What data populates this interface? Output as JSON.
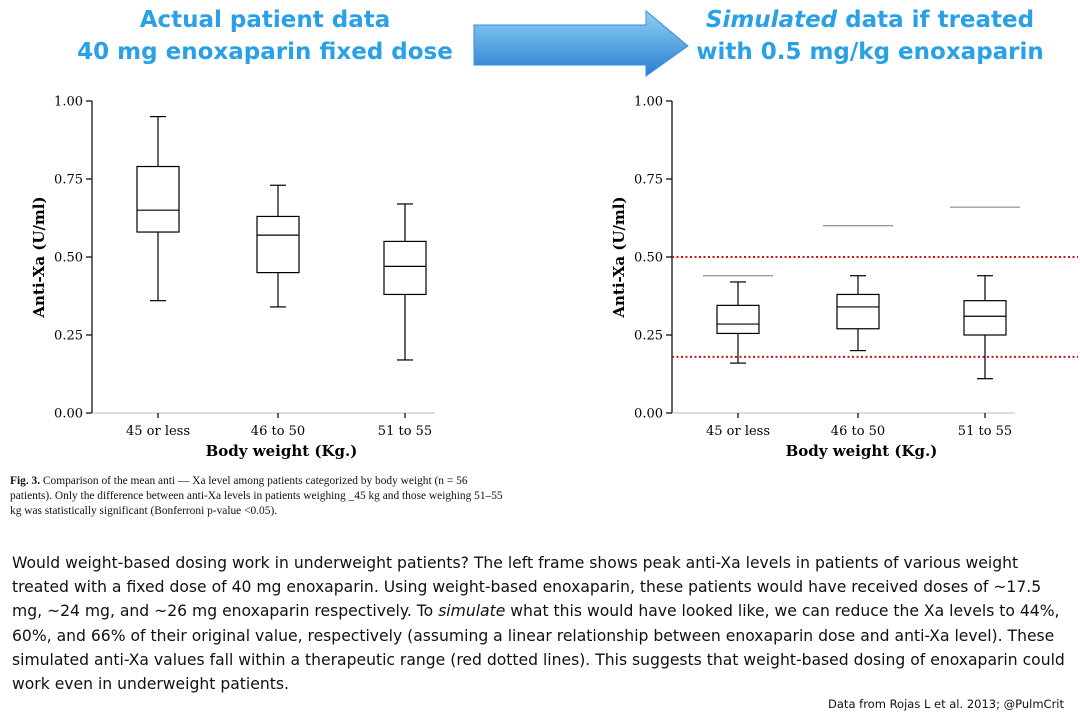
{
  "header": {
    "left_title_line1": "Actual patient data",
    "left_title_line2": "40 mg enoxaparin fixed dose",
    "right_title_italic": "Simulated",
    "right_title_line1_rest": " data if treated",
    "right_title_line2": "with 0.5 mg/kg enoxaparin"
  },
  "colors": {
    "title": "#2aa0e6",
    "arrow": "#3a8fd9",
    "therapeutic_lines": "#cc1111"
  },
  "chart_data": [
    {
      "type": "box",
      "xlabel": "Body weight (Kg.)",
      "ylabel": "Anti-Xa (U/ml)",
      "ylim": [
        0,
        1
      ],
      "yticks": [
        "0.00",
        "0.25",
        "0.50",
        "0.75",
        "1.00"
      ],
      "categories": [
        "45 or less",
        "46 to 50",
        "51 to 55"
      ],
      "boxes": [
        {
          "min": 0.36,
          "q1": 0.58,
          "median": 0.65,
          "q3": 0.79,
          "max": 0.95
        },
        {
          "min": 0.34,
          "q1": 0.45,
          "median": 0.57,
          "q3": 0.63,
          "max": 0.73
        },
        {
          "min": 0.17,
          "q1": 0.38,
          "median": 0.47,
          "q3": 0.55,
          "max": 0.67
        }
      ]
    },
    {
      "type": "box",
      "xlabel": "Body weight (Kg.)",
      "ylabel": "Anti-Xa (U/ml)",
      "ylim": [
        0,
        1
      ],
      "yticks": [
        "0.00",
        "0.25",
        "0.50",
        "0.75",
        "1.00"
      ],
      "categories": [
        "45 or less",
        "46 to 50",
        "51 to 55"
      ],
      "boxes": [
        {
          "min": 0.16,
          "q1": 0.255,
          "median": 0.285,
          "q3": 0.345,
          "max": 0.42
        },
        {
          "min": 0.2,
          "q1": 0.27,
          "median": 0.34,
          "q3": 0.38,
          "max": 0.44
        },
        {
          "min": 0.11,
          "q1": 0.25,
          "median": 0.31,
          "q3": 0.36,
          "max": 0.44
        }
      ],
      "reference_segments": [
        0.44,
        0.6,
        0.66
      ],
      "therapeutic_range_lines": [
        0.5,
        0.18
      ]
    }
  ],
  "caption": {
    "label": "Fig. 3.",
    "text": " Comparison of the mean anti — Xa level among patients categorized by body weight (n = 56 patients). Only the difference between anti-Xa levels in patients weighing _45 kg and those weighing 51–55 kg was statistically significant (Bonferroni p-value <0.05)."
  },
  "commentary": {
    "part1": "Would weight-based dosing work in underweight patients?  The left frame shows peak anti-Xa levels in patients of various weight treated with a fixed dose of 40 mg enoxaparin.  Using weight-based enoxaparin, these patients would have received doses of ~17.5 mg, ~24 mg, and ~26 mg enoxaparin respectively.  To ",
    "italic": "simulate",
    "part2": " what this would have looked like, we can reduce the Xa levels to 44%, 60%, and 66% of their original value, respectively (assuming a linear relationship between enoxaparin dose and anti-Xa level).  These simulated anti-Xa values fall within a therapeutic range (red dotted lines).  This suggests that weight-based dosing of enoxaparin could work even in underweight patients."
  },
  "credit": "Data from Rojas L et al. 2013; @PulmCrit"
}
